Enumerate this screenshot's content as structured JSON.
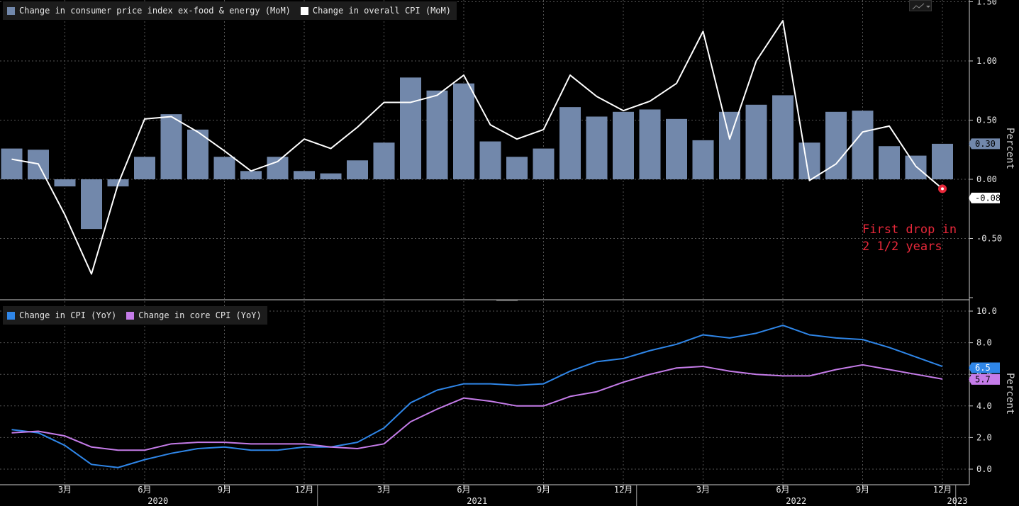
{
  "colors": {
    "core_bar": "#7288ab",
    "overall_line": "#ffffff",
    "cpi_yoy": "#2f86e8",
    "core_yoy": "#c57ce9",
    "annotation": "#e8283a",
    "grid": "#555555"
  },
  "top_legend": {
    "core_label": "Change in consumer price index ex-food & energy (MoM)",
    "overall_label": "Change in overall CPI (MoM)"
  },
  "bottom_legend": {
    "cpi_label": "Change in CPI (YoY)",
    "core_label": "Change in core CPI (YoY)"
  },
  "top_axis_title": "Percent",
  "bottom_axis_title": "Percent",
  "annotation": {
    "line1": "First drop in",
    "line2": "2 1/2 years"
  },
  "chart_data": [
    {
      "type": "bar",
      "ylabel": "Percent",
      "ylim": [
        -1.0,
        1.5
      ],
      "yticks": [
        "1.50",
        "1.00",
        "0.50",
        "0.00",
        "-0.50"
      ],
      "x": [
        "2020-01",
        "2020-02",
        "2020-03",
        "2020-04",
        "2020-05",
        "2020-06",
        "2020-07",
        "2020-08",
        "2020-09",
        "2020-10",
        "2020-11",
        "2020-12",
        "2021-01",
        "2021-02",
        "2021-03",
        "2021-04",
        "2021-05",
        "2021-06",
        "2021-07",
        "2021-08",
        "2021-09",
        "2021-10",
        "2021-11",
        "2021-12",
        "2022-01",
        "2022-02",
        "2022-03",
        "2022-04",
        "2022-05",
        "2022-06",
        "2022-07",
        "2022-08",
        "2022-09",
        "2022-10",
        "2022-11",
        "2022-12"
      ],
      "series": [
        {
          "name": "Change in consumer price index ex-food & energy (MoM)",
          "type": "bar",
          "values": [
            0.26,
            0.25,
            -0.06,
            -0.42,
            -0.06,
            0.19,
            0.55,
            0.42,
            0.19,
            0.07,
            0.19,
            0.07,
            0.05,
            0.16,
            0.31,
            0.86,
            0.75,
            0.81,
            0.32,
            0.19,
            0.26,
            0.61,
            0.53,
            0.57,
            0.59,
            0.51,
            0.33,
            0.57,
            0.63,
            0.71,
            0.31,
            0.57,
            0.58,
            0.28,
            0.2,
            0.3
          ]
        },
        {
          "name": "Change in overall CPI (MoM)",
          "type": "line",
          "values": [
            0.17,
            0.13,
            -0.3,
            -0.8,
            -0.04,
            0.51,
            0.53,
            0.4,
            0.24,
            0.07,
            0.15,
            0.34,
            0.26,
            0.44,
            0.65,
            0.65,
            0.71,
            0.88,
            0.46,
            0.34,
            0.42,
            0.88,
            0.7,
            0.58,
            0.66,
            0.81,
            1.25,
            0.34,
            1.0,
            1.34,
            -0.01,
            0.13,
            0.4,
            0.45,
            0.11,
            -0.08
          ]
        }
      ],
      "value_labels": [
        "0.30",
        "-0.08"
      ]
    },
    {
      "type": "line",
      "ylabel": "Percent",
      "ylim": [
        -1.0,
        10.6
      ],
      "yticks": [
        "10.0",
        "8.0",
        "6.0",
        "4.0",
        "2.0",
        "0.0"
      ],
      "x": [
        "2020-01",
        "2020-02",
        "2020-03",
        "2020-04",
        "2020-05",
        "2020-06",
        "2020-07",
        "2020-08",
        "2020-09",
        "2020-10",
        "2020-11",
        "2020-12",
        "2021-01",
        "2021-02",
        "2021-03",
        "2021-04",
        "2021-05",
        "2021-06",
        "2021-07",
        "2021-08",
        "2021-09",
        "2021-10",
        "2021-11",
        "2021-12",
        "2022-01",
        "2022-02",
        "2022-03",
        "2022-04",
        "2022-05",
        "2022-06",
        "2022-07",
        "2022-08",
        "2022-09",
        "2022-10",
        "2022-11",
        "2022-12"
      ],
      "series": [
        {
          "name": "Change in CPI (YoY)",
          "values": [
            2.5,
            2.3,
            1.5,
            0.3,
            0.1,
            0.6,
            1.0,
            1.3,
            1.4,
            1.2,
            1.2,
            1.4,
            1.4,
            1.7,
            2.6,
            4.2,
            5.0,
            5.4,
            5.4,
            5.3,
            5.4,
            6.2,
            6.8,
            7.0,
            7.5,
            7.9,
            8.5,
            8.3,
            8.6,
            9.1,
            8.5,
            8.3,
            8.2,
            7.7,
            7.1,
            6.5
          ]
        },
        {
          "name": "Change in core CPI (YoY)",
          "values": [
            2.3,
            2.4,
            2.1,
            1.4,
            1.2,
            1.2,
            1.6,
            1.7,
            1.7,
            1.6,
            1.6,
            1.6,
            1.4,
            1.3,
            1.6,
            3.0,
            3.8,
            4.5,
            4.3,
            4.0,
            4.0,
            4.6,
            4.9,
            5.5,
            6.0,
            6.4,
            6.5,
            6.2,
            6.0,
            5.9,
            5.9,
            6.3,
            6.6,
            6.3,
            6.0,
            5.7
          ]
        }
      ],
      "value_labels": [
        "6.5",
        "5.7"
      ]
    }
  ],
  "x_axis": {
    "month_ticks": [
      "3月",
      "6月",
      "9月",
      "12月",
      "3月",
      "6月",
      "9月",
      "12月",
      "3月",
      "6月",
      "9月",
      "12月"
    ],
    "year_labels": [
      "2020",
      "2021",
      "2022",
      "2023"
    ]
  }
}
